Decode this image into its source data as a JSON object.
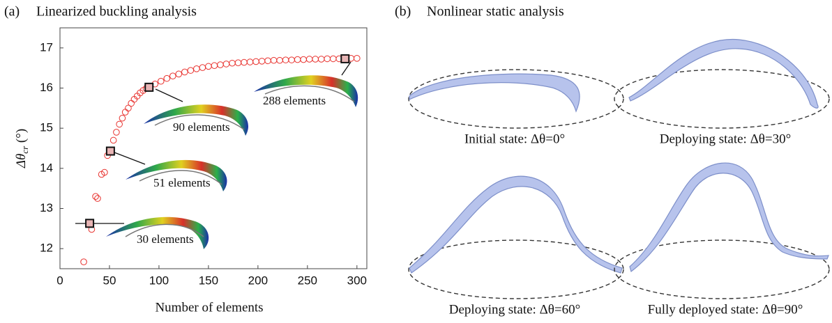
{
  "chart_data": {
    "type": "scatter",
    "panel_label": "(a)",
    "title": "Linearized buckling analysis",
    "xlabel": "Number of elements",
    "ylabel": {
      "main": "Δθ",
      "sub": "cr",
      "unit": " (°)"
    },
    "xlim": [
      0,
      310
    ],
    "ylim": [
      11.5,
      17.5
    ],
    "xticks": [
      0,
      50,
      100,
      150,
      200,
      250,
      300
    ],
    "yticks": [
      12,
      13,
      14,
      15,
      16,
      17
    ],
    "series": [
      {
        "marker": "circle",
        "color": "#e8322e",
        "x": [
          24,
          30,
          32,
          36,
          38,
          42,
          45,
          48,
          51,
          54,
          57,
          60,
          63,
          66,
          69,
          72,
          75,
          78,
          81,
          84,
          87,
          90,
          96,
          102,
          108,
          114,
          120,
          126,
          132,
          138,
          144,
          150,
          156,
          162,
          168,
          174,
          180,
          186,
          192,
          198,
          204,
          210,
          216,
          222,
          228,
          234,
          240,
          246,
          252,
          258,
          264,
          270,
          276,
          282,
          288,
          294,
          300
        ],
        "values": [
          11.67,
          12.63,
          12.48,
          13.3,
          13.25,
          13.85,
          13.9,
          14.32,
          14.43,
          14.7,
          14.9,
          15.1,
          15.25,
          15.4,
          15.5,
          15.62,
          15.72,
          15.8,
          15.88,
          15.94,
          15.99,
          16.02,
          16.1,
          16.17,
          16.24,
          16.3,
          16.35,
          16.4,
          16.44,
          16.48,
          16.51,
          16.54,
          16.56,
          16.58,
          16.6,
          16.62,
          16.63,
          16.64,
          16.65,
          16.66,
          16.67,
          16.68,
          16.69,
          16.69,
          16.7,
          16.7,
          16.71,
          16.71,
          16.72,
          16.72,
          16.72,
          16.73,
          16.73,
          16.73,
          16.73,
          16.74,
          16.74
        ]
      },
      {
        "marker": "square",
        "color": "#111111",
        "x": [
          30,
          51,
          90,
          288
        ],
        "values": [
          12.63,
          14.43,
          16.02,
          16.73
        ]
      }
    ],
    "annotations": [
      "30 elements",
      "51 elements",
      "90 elements",
      "288 elements"
    ]
  },
  "panel_b": {
    "panel_label": "(b)",
    "title": "Nonlinear static analysis",
    "captions": [
      "Initial state: Δθ=0°",
      "Deploying state: Δθ=30°",
      "Deploying state: Δθ=60°",
      "Fully deployed state: Δθ=90°"
    ]
  }
}
